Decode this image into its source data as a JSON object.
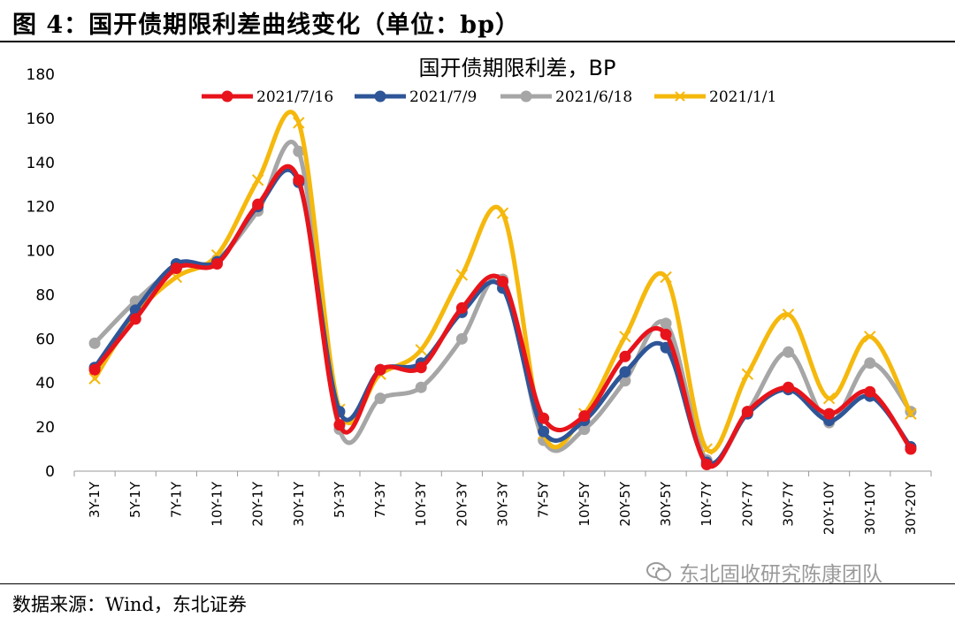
{
  "figure": {
    "title": "图  4：国开债期限利差曲线变化（单位：bp）",
    "source": "数据来源：Wind，东北证券",
    "watermark": "东北固收研究陈康团队"
  },
  "colors": {
    "series": [
      "#e8141b",
      "#2e5597",
      "#a6a6a6",
      "#f5b80c"
    ]
  },
  "chart_data": {
    "type": "line",
    "smooth": true,
    "title": "国开债期限利差，BP",
    "xlabel": "",
    "ylabel": "",
    "ylim": [
      0,
      180
    ],
    "yticks": [
      0,
      20,
      40,
      60,
      80,
      100,
      120,
      140,
      160,
      180
    ],
    "legend_position": "top-center",
    "categories": [
      "3Y-1Y",
      "5Y-1Y",
      "7Y-1Y",
      "10Y-1Y",
      "20Y-1Y",
      "30Y-1Y",
      "5Y-3Y",
      "7Y-3Y",
      "10Y-3Y",
      "20Y-3Y",
      "30Y-3Y",
      "7Y-5Y",
      "10Y-5Y",
      "20Y-5Y",
      "30Y-5Y",
      "10Y-7Y",
      "20Y-7Y",
      "30Y-7Y",
      "20Y-10Y",
      "30Y-10Y",
      "30Y-20Y"
    ],
    "series": [
      {
        "name": "2021/7/16",
        "marker": "circle",
        "values": [
          46,
          69,
          92,
          94,
          121,
          132,
          21,
          46,
          47,
          74,
          86,
          24,
          25,
          52,
          62,
          3,
          27,
          38,
          26,
          36,
          10
        ]
      },
      {
        "name": "2021/7/9",
        "marker": "circle",
        "values": [
          47,
          73,
          94,
          95,
          120,
          131,
          27,
          46,
          49,
          72,
          83,
          18,
          23,
          45,
          56,
          4,
          26,
          37,
          23,
          34,
          11
        ]
      },
      {
        "name": "2021/6/18",
        "marker": "circle",
        "values": [
          58,
          77,
          92,
          96,
          118,
          145,
          19,
          33,
          38,
          60,
          87,
          14,
          19,
          41,
          67,
          5,
          27,
          54,
          22,
          49,
          27
        ]
      },
      {
        "name": "2021/1/1",
        "marker": "x",
        "values": [
          42,
          71,
          88,
          98,
          132,
          158,
          28,
          44,
          55,
          89,
          117,
          17,
          26,
          61,
          88,
          10,
          44,
          71,
          33,
          61,
          26
        ]
      }
    ]
  }
}
